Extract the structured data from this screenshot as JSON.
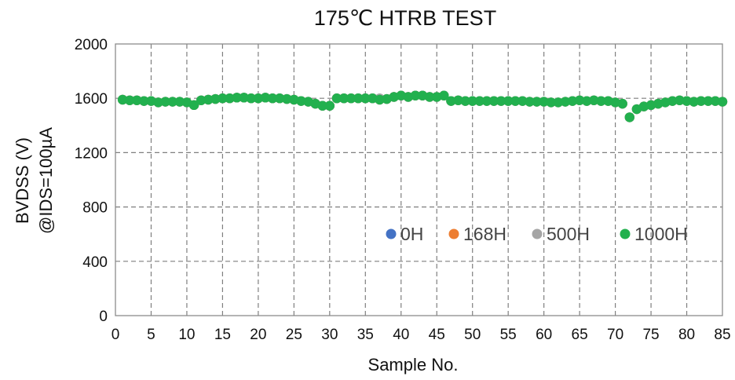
{
  "chart_data": {
    "type": "scatter",
    "title": "175℃ HTRB TEST",
    "xlabel": "Sample No.",
    "ylabel_lines": [
      "BVDSS (V)",
      "@IDS=100µA"
    ],
    "xlim": [
      0,
      85
    ],
    "ylim": [
      0,
      2000
    ],
    "x_ticks": [
      0,
      5,
      10,
      15,
      20,
      25,
      30,
      35,
      40,
      45,
      50,
      55,
      60,
      65,
      70,
      75,
      80,
      85
    ],
    "y_ticks": [
      0,
      400,
      800,
      1200,
      1600,
      2000
    ],
    "grid": true,
    "grid_style": "dashed",
    "legend_position": "lower-right inside plot",
    "x": [
      1,
      2,
      3,
      4,
      5,
      6,
      7,
      8,
      9,
      10,
      11,
      12,
      13,
      14,
      15,
      16,
      17,
      18,
      19,
      20,
      21,
      22,
      23,
      24,
      25,
      26,
      27,
      28,
      29,
      30,
      31,
      32,
      33,
      34,
      35,
      36,
      37,
      38,
      39,
      40,
      41,
      42,
      43,
      44,
      45,
      46,
      47,
      48,
      49,
      50,
      51,
      52,
      53,
      54,
      55,
      56,
      57,
      58,
      59,
      60,
      61,
      62,
      63,
      64,
      65,
      66,
      67,
      68,
      69,
      70,
      71,
      72,
      73,
      74,
      75,
      76,
      77,
      78,
      79,
      80,
      81,
      82,
      83,
      84,
      85
    ],
    "series": [
      {
        "name": "0H",
        "color": "#4472C4",
        "values": [
          1590,
          1585,
          1585,
          1580,
          1580,
          1570,
          1575,
          1575,
          1575,
          1570,
          1550,
          1585,
          1590,
          1595,
          1600,
          1600,
          1605,
          1605,
          1600,
          1600,
          1605,
          1600,
          1600,
          1595,
          1590,
          1580,
          1575,
          1560,
          1545,
          1545,
          1600,
          1600,
          1600,
          1600,
          1600,
          1600,
          1590,
          1595,
          1610,
          1620,
          1610,
          1620,
          1620,
          1610,
          1610,
          1620,
          1580,
          1585,
          1580,
          1580,
          1580,
          1580,
          1580,
          1580,
          1580,
          1580,
          1580,
          1575,
          1575,
          1575,
          1570,
          1570,
          1575,
          1580,
          1585,
          1580,
          1585,
          1580,
          1580,
          1570,
          1560,
          1460,
          1520,
          1540,
          1550,
          1560,
          1570,
          1580,
          1585,
          1580,
          1575,
          1580,
          1580,
          1580,
          1575
        ]
      },
      {
        "name": "168H",
        "color": "#ED7D31",
        "values": [
          1590,
          1585,
          1585,
          1580,
          1580,
          1570,
          1575,
          1575,
          1575,
          1570,
          1550,
          1585,
          1590,
          1595,
          1600,
          1600,
          1605,
          1605,
          1600,
          1600,
          1605,
          1600,
          1600,
          1595,
          1590,
          1580,
          1575,
          1560,
          1545,
          1545,
          1600,
          1600,
          1600,
          1600,
          1600,
          1600,
          1590,
          1595,
          1610,
          1620,
          1610,
          1620,
          1620,
          1610,
          1610,
          1620,
          1580,
          1585,
          1580,
          1580,
          1580,
          1580,
          1580,
          1580,
          1580,
          1580,
          1580,
          1575,
          1575,
          1575,
          1570,
          1570,
          1575,
          1580,
          1585,
          1580,
          1585,
          1580,
          1580,
          1570,
          1560,
          1460,
          1520,
          1540,
          1550,
          1560,
          1570,
          1580,
          1585,
          1580,
          1575,
          1580,
          1580,
          1580,
          1575
        ]
      },
      {
        "name": "500H",
        "color": "#A5A5A5",
        "values": [
          1590,
          1585,
          1585,
          1580,
          1580,
          1570,
          1575,
          1575,
          1575,
          1570,
          1550,
          1585,
          1590,
          1595,
          1600,
          1600,
          1605,
          1605,
          1600,
          1600,
          1605,
          1600,
          1600,
          1595,
          1590,
          1580,
          1575,
          1560,
          1545,
          1545,
          1600,
          1600,
          1600,
          1600,
          1600,
          1600,
          1600,
          1595,
          1610,
          1620,
          1610,
          1620,
          1620,
          1610,
          1610,
          1620,
          1580,
          1585,
          1580,
          1580,
          1580,
          1580,
          1580,
          1580,
          1580,
          1580,
          1580,
          1575,
          1575,
          1575,
          1570,
          1570,
          1575,
          1580,
          1585,
          1580,
          1585,
          1580,
          1580,
          1570,
          1560,
          1460,
          1520,
          1540,
          1550,
          1560,
          1570,
          1580,
          1585,
          1580,
          1575,
          1580,
          1580,
          1580,
          1575
        ]
      },
      {
        "name": "1000H",
        "color": "#22B04E",
        "values": [
          1590,
          1585,
          1585,
          1580,
          1580,
          1570,
          1575,
          1575,
          1575,
          1570,
          1550,
          1585,
          1590,
          1595,
          1600,
          1600,
          1605,
          1605,
          1600,
          1600,
          1605,
          1600,
          1600,
          1595,
          1590,
          1580,
          1575,
          1560,
          1545,
          1545,
          1600,
          1600,
          1600,
          1600,
          1600,
          1600,
          1590,
          1595,
          1610,
          1620,
          1610,
          1620,
          1620,
          1610,
          1610,
          1620,
          1580,
          1585,
          1580,
          1580,
          1580,
          1580,
          1580,
          1580,
          1580,
          1580,
          1580,
          1575,
          1575,
          1575,
          1570,
          1570,
          1575,
          1580,
          1585,
          1580,
          1585,
          1580,
          1580,
          1570,
          1560,
          1460,
          1520,
          1540,
          1550,
          1560,
          1570,
          1580,
          1585,
          1580,
          1575,
          1580,
          1580,
          1580,
          1575
        ]
      }
    ]
  }
}
